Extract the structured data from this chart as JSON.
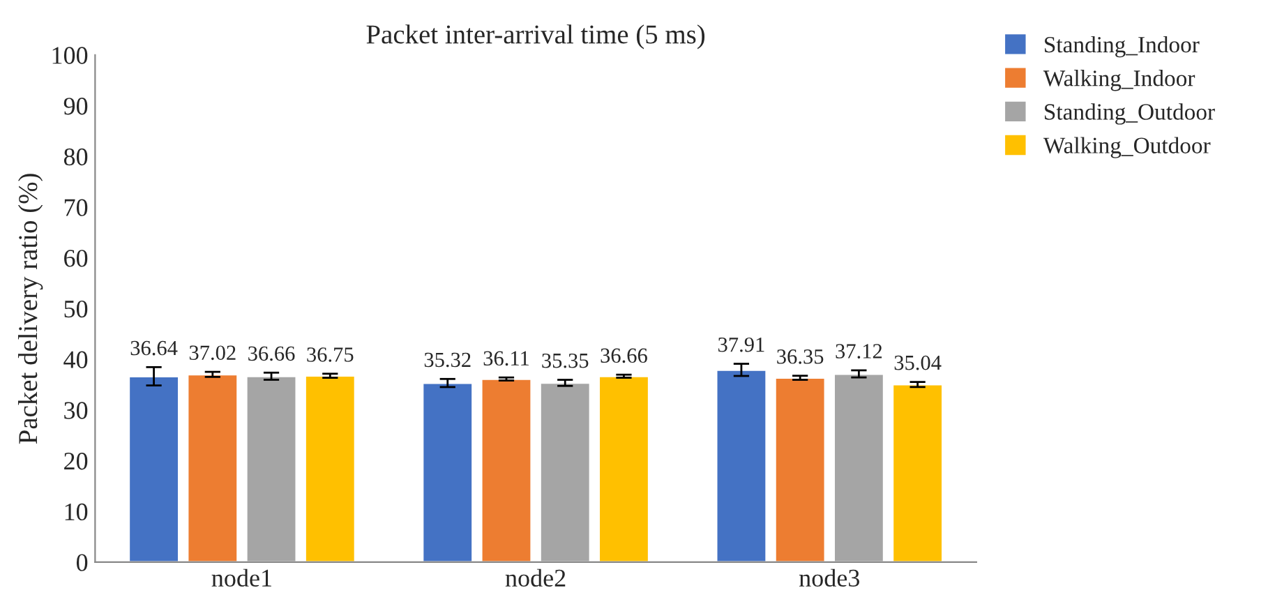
{
  "chart_data": {
    "type": "bar",
    "title": "Packet inter-arrival time (5 ms)",
    "ylabel": "Packet delivery ratio (%)",
    "categories": [
      "node1",
      "node2",
      "node3"
    ],
    "series": [
      {
        "name": "Standing_Indoor",
        "color": "#4472c4",
        "values": [
          36.64,
          35.32,
          37.91
        ],
        "errors": [
          1.8,
          0.8,
          1.2
        ]
      },
      {
        "name": "Walking_Indoor",
        "color": "#ed7d31",
        "values": [
          37.02,
          36.11,
          36.35
        ],
        "errors": [
          0.5,
          0.3,
          0.4
        ]
      },
      {
        "name": "Standing_Outdoor",
        "color": "#a5a5a5",
        "values": [
          36.66,
          35.35,
          37.12
        ],
        "errors": [
          0.7,
          0.6,
          0.7
        ]
      },
      {
        "name": "Walking_Outdoor",
        "color": "#ffc000",
        "values": [
          36.75,
          36.66,
          35.04
        ],
        "errors": [
          0.4,
          0.3,
          0.5
        ]
      }
    ],
    "ylim": [
      0,
      100
    ],
    "yticks": [
      0,
      10,
      20,
      30,
      40,
      50,
      60,
      70,
      80,
      90,
      100
    ],
    "data_labels": true,
    "grid": false,
    "legend": "top right"
  }
}
